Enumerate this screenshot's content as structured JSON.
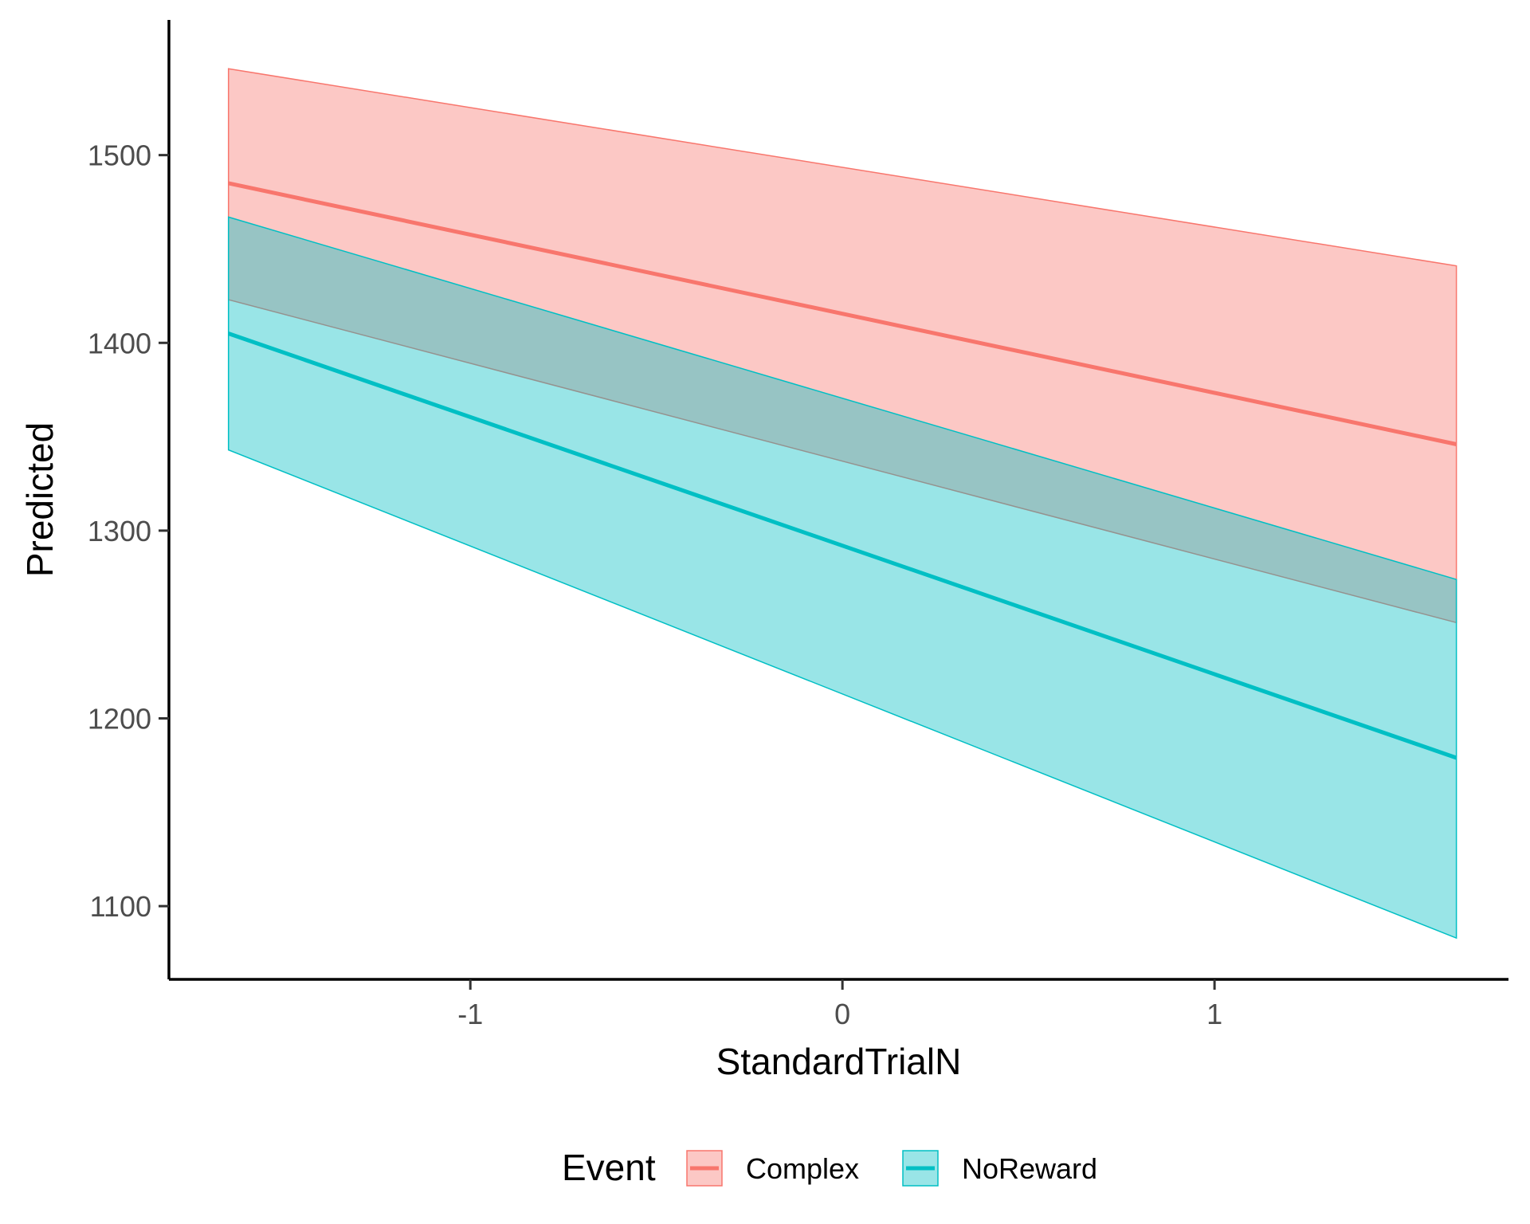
{
  "chart_data": {
    "type": "line",
    "title": "",
    "xlabel": "StandardTrialN",
    "ylabel": "Predicted",
    "xlim": [
      -1.81,
      1.79
    ],
    "ylim": [
      1061,
      1572
    ],
    "x_ticks": [
      -1,
      0,
      1
    ],
    "y_ticks": [
      1100,
      1200,
      1300,
      1400,
      1500
    ],
    "x_tick_labels": [
      "-1",
      "0",
      "1"
    ],
    "y_tick_labels": [
      "1100",
      "1200",
      "1300",
      "1400",
      "1500"
    ],
    "grid": false,
    "legend": {
      "title": "Event",
      "position": "bottom"
    },
    "series": [
      {
        "name": "Complex",
        "color": "#F8766D",
        "x": [
          -1.65,
          1.65
        ],
        "y": [
          1485,
          1346
        ],
        "lower": [
          1423,
          1251
        ],
        "upper": [
          1546,
          1441
        ]
      },
      {
        "name": "NoReward",
        "color": "#00BFC4",
        "x": [
          -1.65,
          1.65
        ],
        "y": [
          1405,
          1179
        ],
        "lower": [
          1343,
          1083
        ],
        "upper": [
          1467,
          1274
        ]
      }
    ]
  }
}
